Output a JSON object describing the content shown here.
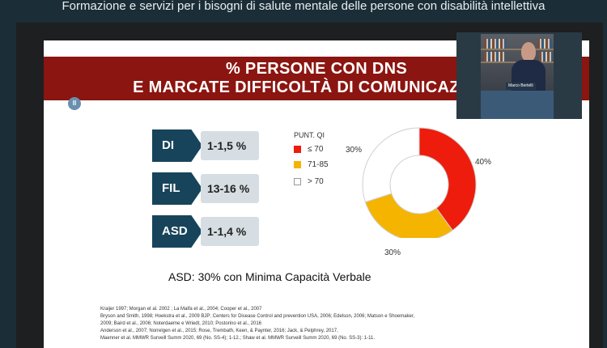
{
  "header": {
    "caption": "Formazione e servizi per i bisogni di salute mentale delle persone con disabilità intellettiva"
  },
  "slide": {
    "title_line1": "% PERSONE CON DNS",
    "title_line2": "E MARCATE DIFFICOLTÀ DI COMUNICAZIONE",
    "categories": [
      {
        "label": "DI",
        "value": "1-1,5 %"
      },
      {
        "label": "FIL",
        "value": "13-16 %"
      },
      {
        "label": "ASD",
        "value": "1-1,4 %"
      }
    ],
    "asd_note": "ASD: 30% con Minima Capacità Verbale",
    "references": [
      "Kraijer 1997; Morgan et al. 2002 ; La Malfa et al., 2004; Cooper et al., 2007",
      "Bryson and Smith, 1998; Hoekstra et al., 2009 BJP; Centers for Disease Control and prevention USA, 2006; Edelson, 2006; Matson e Shoemaker,",
      "2009; Baird et al., 2006; Noterdaeme e Wriedt, 2010; Postorino et al., 2016",
      "Anderson et al., 2007; Norrelgen et al., 2015; Rose, Trembath, Keen, & Paynter, 2016; Jack, & Pelphrey, 2017,",
      "Maenner et al. MMWR Surveill Summ 2020, 69 (No. SS-4); 1-12.; Shaw et al. MMWR Surveill Summ 2020, 69 (No. SS-3): 1-11."
    ]
  },
  "chart_data": {
    "type": "pie",
    "legend_title": "PUNT. QI",
    "legend_position": "left",
    "categories": [
      "≤ 70",
      "71-85",
      "> 70"
    ],
    "values": [
      40,
      30,
      30
    ],
    "value_labels": [
      "40%",
      "30%",
      "30%"
    ],
    "colors": [
      "#ee1c0c",
      "#f5b400",
      "#ffffff"
    ]
  },
  "video": {
    "speaker_name": "Marco Bertelli"
  }
}
